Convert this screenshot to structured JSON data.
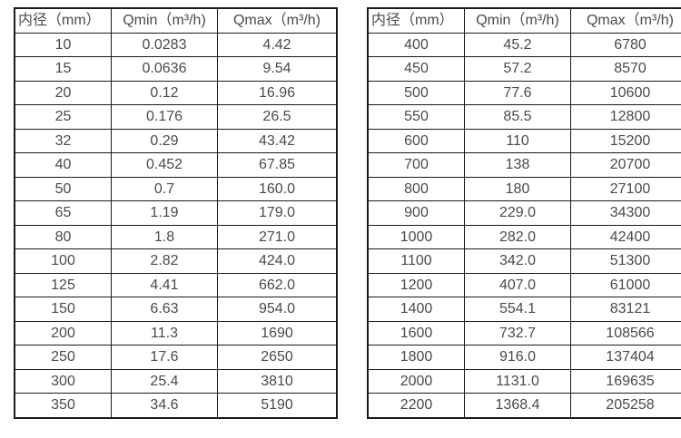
{
  "tables": [
    {
      "name": "flow-rate-table-small-diameters",
      "headers": [
        "内径（mm）",
        "Qmin（m³/h)",
        "Qmax（m³/h)"
      ],
      "rows": [
        [
          "10",
          "0.0283",
          "4.42"
        ],
        [
          "15",
          "0.0636",
          "9.54"
        ],
        [
          "20",
          "0.12",
          "16.96"
        ],
        [
          "25",
          "0.176",
          "26.5"
        ],
        [
          "32",
          "0.29",
          "43.42"
        ],
        [
          "40",
          "0.452",
          "67.85"
        ],
        [
          "50",
          "0.7",
          "160.0"
        ],
        [
          "65",
          "1.19",
          "179.0"
        ],
        [
          "80",
          "1.8",
          "271.0"
        ],
        [
          "100",
          "2.82",
          "424.0"
        ],
        [
          "125",
          "4.41",
          "662.0"
        ],
        [
          "150",
          "6.63",
          "954.0"
        ],
        [
          "200",
          "11.3",
          "1690"
        ],
        [
          "250",
          "17.6",
          "2650"
        ],
        [
          "300",
          "25.4",
          "3810"
        ],
        [
          "350",
          "34.6",
          "5190"
        ]
      ]
    },
    {
      "name": "flow-rate-table-large-diameters",
      "headers": [
        "内径（mm）",
        "Qmin（m³/h)",
        "Qmax（m³/h)"
      ],
      "rows": [
        [
          "400",
          "45.2",
          "6780"
        ],
        [
          "450",
          "57.2",
          "8570"
        ],
        [
          "500",
          "77.6",
          "10600"
        ],
        [
          "550",
          "85.5",
          "12800"
        ],
        [
          "600",
          "110",
          "15200"
        ],
        [
          "700",
          "138",
          "20700"
        ],
        [
          "800",
          "180",
          "27100"
        ],
        [
          "900",
          "229.0",
          "34300"
        ],
        [
          "1000",
          "282.0",
          "42400"
        ],
        [
          "1100",
          "342.0",
          "51300"
        ],
        [
          "1200",
          "407.0",
          "61000"
        ],
        [
          "1400",
          "554.1",
          "83121"
        ],
        [
          "1600",
          "732.7",
          "108566"
        ],
        [
          "1800",
          "916.0",
          "137404"
        ],
        [
          "2000",
          "1131.0",
          "169635"
        ],
        [
          "2200",
          "1368.4",
          "205258"
        ]
      ]
    }
  ]
}
